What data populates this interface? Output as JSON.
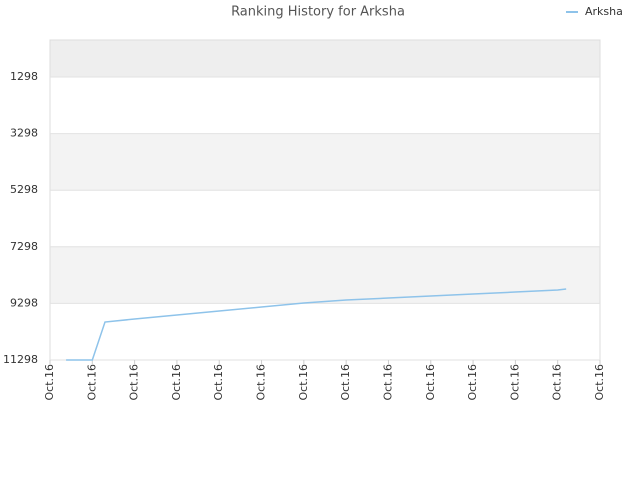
{
  "chart_data": {
    "type": "line",
    "title": "Ranking History for Arksha",
    "x": [
      0.38,
      1.0,
      1.3,
      2,
      3,
      4,
      5,
      6,
      7,
      8,
      9,
      10,
      11,
      12,
      12.2
    ],
    "series": [
      {
        "name": "Arksha",
        "color": "#8ec3ea",
        "values": [
          11298,
          11298,
          9956,
          9850,
          9709,
          9568,
          9426,
          9285,
          9179,
          9108,
          9038,
          8967,
          8896,
          8826,
          8790
        ]
      }
    ],
    "xlim": [
      0,
      13
    ],
    "xticks": [
      {
        "value": 0,
        "label": "Oct.16"
      },
      {
        "value": 1,
        "label": "Oct.16"
      },
      {
        "value": 2,
        "label": "Oct.16"
      },
      {
        "value": 3,
        "label": "Oct.16"
      },
      {
        "value": 4,
        "label": "Oct.16"
      },
      {
        "value": 5,
        "label": "Oct.16"
      },
      {
        "value": 6,
        "label": "Oct.16"
      },
      {
        "value": 7,
        "label": "Oct.16"
      },
      {
        "value": 8,
        "label": "Oct.16"
      },
      {
        "value": 9,
        "label": "Oct.16"
      },
      {
        "value": 10,
        "label": "Oct.16"
      },
      {
        "value": 11,
        "label": "Oct.16"
      },
      {
        "value": 12,
        "label": "Oct.16"
      },
      {
        "value": 13,
        "label": "Oct.16"
      }
    ],
    "ylim": [
      11298,
      -9
    ],
    "yticks": [
      1298,
      3298,
      5298,
      7298,
      9298,
      11298
    ],
    "grid": true,
    "legend": "top-right"
  }
}
